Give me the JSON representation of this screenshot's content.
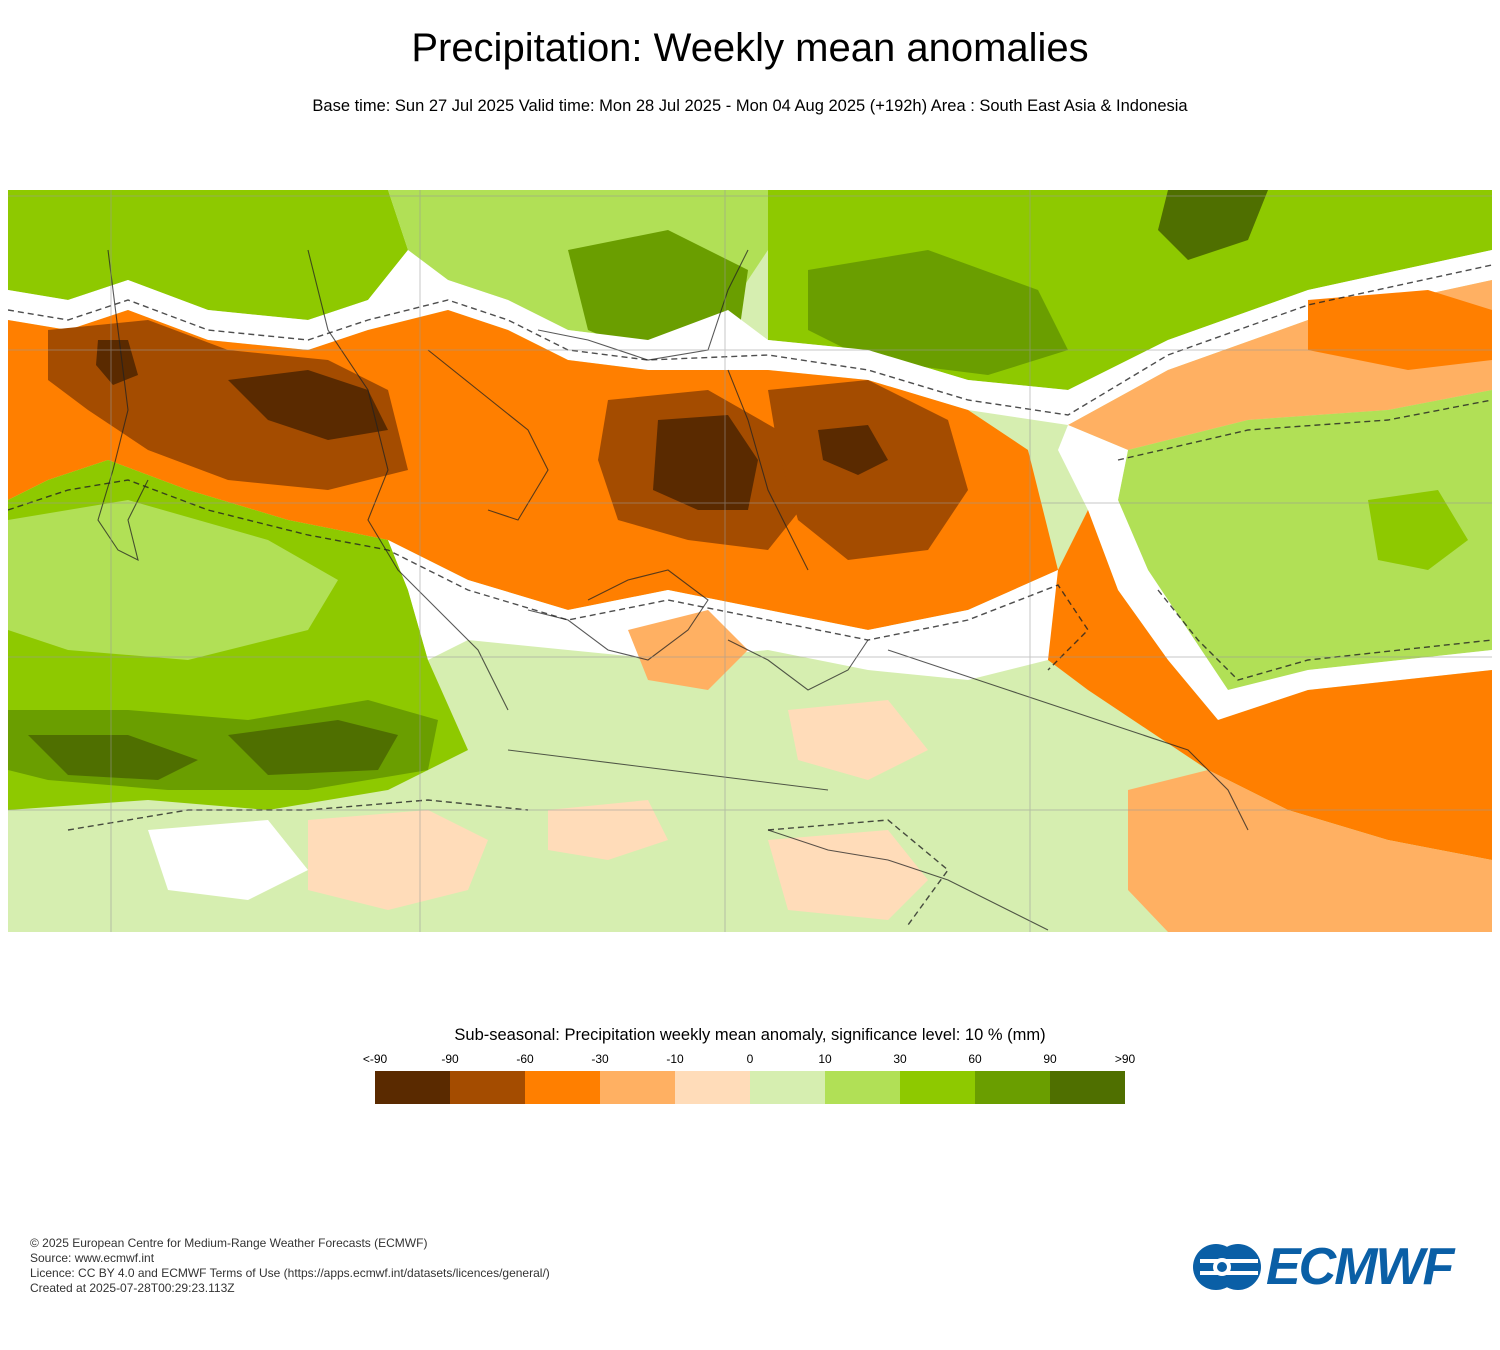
{
  "header": {
    "title": "Precipitation: Weekly mean anomalies",
    "subtitle": "Base time: Sun 27 Jul 2025 Valid time: Mon 28 Jul 2025 - Mon 04 Aug 2025 (+192h) Area : South East Asia & Indonesia"
  },
  "legend": {
    "title": "Sub-seasonal: Precipitation weekly mean anomaly, significance level: 10 % (mm)",
    "ticks": [
      "<-90",
      "-90",
      "-60",
      "-30",
      "-10",
      "0",
      "10",
      "30",
      "60",
      "90",
      ">90"
    ],
    "colors": [
      "#5a2a00",
      "#a44c00",
      "#ff7f00",
      "#ffb062",
      "#ffdcb9",
      "#d6eeb0",
      "#b1e056",
      "#8ec900",
      "#6a9e00",
      "#4f6f00"
    ]
  },
  "map": {
    "region": "South East Asia & Indonesia",
    "colors": {
      "dark_brown": "#5a2a00",
      "brown": "#a44c00",
      "orange": "#ff7f00",
      "light_orange": "#ffb062",
      "pale_orange": "#ffdcb9",
      "white": "#ffffff",
      "pale_green": "#d6eeb0",
      "light_green": "#b1e056",
      "green": "#8ec900",
      "dark_green": "#6a9e00",
      "darkest_green": "#4f6f00"
    }
  },
  "credits": {
    "copyright": "© 2025 European Centre for Medium-Range Weather Forecasts (ECMWF)",
    "source": "Source: www.ecmwf.int",
    "licence": "Licence: CC BY 4.0 and ECMWF Terms of Use (https://apps.ecmwf.int/datasets/licences/general/)",
    "created": "Created at 2025-07-28T00:29:23.113Z"
  },
  "logo": {
    "text": "ECMWF",
    "color": "#0a5fa6"
  }
}
